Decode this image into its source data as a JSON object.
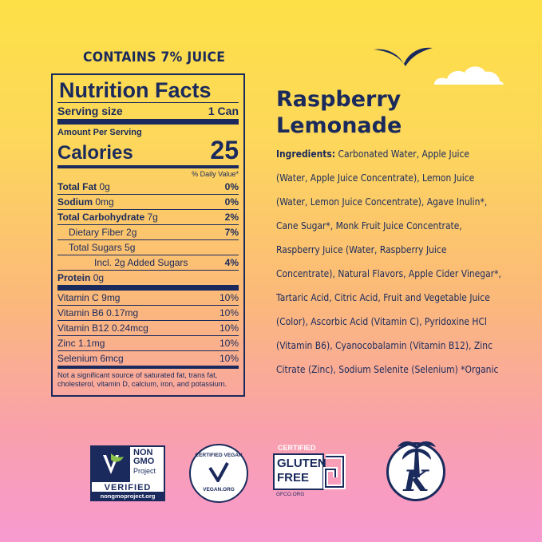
{
  "contains": "CONTAINS 7% JUICE",
  "nutrition": {
    "title": "Nutrition Facts",
    "serving_label": "Serving size",
    "serving_value": "1 Can",
    "amount_per": "Amount Per Serving",
    "calories_label": "Calories",
    "calories_value": "25",
    "daily_value_head": "% Daily Value*",
    "rows": [
      {
        "name": "Total Fat",
        "amount": "0g",
        "dv": "0%",
        "bold": true,
        "indent": 0
      },
      {
        "name": "Sodium",
        "amount": "0mg",
        "dv": "0%",
        "bold": true,
        "indent": 0
      },
      {
        "name": "Total Carbohydrate",
        "amount": "7g",
        "dv": "2%",
        "bold": true,
        "indent": 0
      },
      {
        "name": "Dietary Fiber",
        "amount": "2g",
        "dv": "7%",
        "bold": false,
        "indent": 1
      },
      {
        "name": "Total Sugars",
        "amount": "5g",
        "dv": "",
        "bold": false,
        "indent": 1
      },
      {
        "name": "Incl. 2g Added Sugars",
        "amount": "",
        "dv": "4%",
        "bold": false,
        "indent": 2
      },
      {
        "name": "Protein",
        "amount": "0g",
        "dv": "",
        "bold": true,
        "indent": 0
      }
    ],
    "vitamins": [
      {
        "name": "Vitamin C",
        "amount": "9mg",
        "dv": "10%"
      },
      {
        "name": "Vitamin B6",
        "amount": "0.17mg",
        "dv": "10%"
      },
      {
        "name": "Vitamin B12",
        "amount": "0.24mcg",
        "dv": "10%"
      },
      {
        "name": "Zinc",
        "amount": "1.1mg",
        "dv": "10%"
      },
      {
        "name": "Selenium",
        "amount": "6mcg",
        "dv": "10%"
      }
    ],
    "footnote": "Not a significant source of saturated fat, trans fat, cholesterol, vitamin D, calcium, iron, and potassium."
  },
  "product": {
    "name_line1": "Raspberry",
    "name_line2": "Lemonade",
    "ingredients_label": "Ingredients:",
    "ingredients_text": "Carbonated Water, Apple Juice (Water, Apple Juice Concentrate), Lemon Juice (Water, Lemon Juice Concentrate), Agave Inulin*, Cane Sugar*, Monk Fruit Juice Concentrate, Raspberry Juice (Water, Raspberry Juice Concentrate), Natural Flavors, Apple Cider Vinegar*, Tartaric Acid, Citric Acid, Fruit and Vegetable Juice (Color), Ascorbic Acid (Vitamin C), Pyridoxine HCl (Vitamin B6), Cyanocobalamin (Vitamin B12), Zinc Citrate (Zinc), Sodium Selenite (Selenium)  *Organic"
  },
  "certs": {
    "nongmo": {
      "l1": "NON",
      "l2": "GMO",
      "l3": "Project",
      "l4": "VERIFIED",
      "l5": "nongmoproject.org"
    },
    "vegan": {
      "top": "CERTIFIED VEGAN",
      "bottom": "VEGAN.ORG"
    },
    "gluten": {
      "l1": "CERTIFIED",
      "l2": "GLUTEN",
      "l3": "FREE",
      "l4": "GFCO.ORG"
    },
    "kosher": {
      "letter": "K"
    }
  },
  "colors": {
    "navy": "#1a2a5c",
    "cloud": "#ffffff"
  },
  "icons": [
    "bird-icon",
    "cloud-icon",
    "nongmo-butterfly-icon",
    "vegan-check-icon",
    "gluten-g-icon",
    "palm-tree-icon"
  ]
}
